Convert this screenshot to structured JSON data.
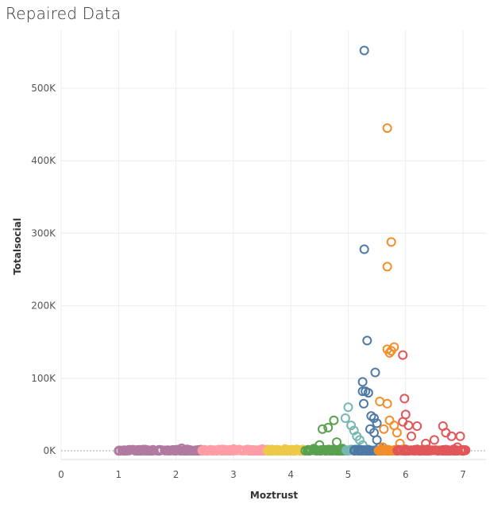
{
  "chart_data": {
    "type": "scatter",
    "title": "Repaired Data",
    "xlabel": "Moztrust",
    "ylabel": "Totalsocial",
    "xlim": [
      0,
      7.4
    ],
    "ylim": [
      -12000,
      580000
    ],
    "x_ticks": [
      {
        "value": 0,
        "label": "0"
      },
      {
        "value": 1,
        "label": "1"
      },
      {
        "value": 2,
        "label": "2"
      },
      {
        "value": 3,
        "label": "3"
      },
      {
        "value": 4,
        "label": "4"
      },
      {
        "value": 5,
        "label": "5"
      },
      {
        "value": 6,
        "label": "6"
      },
      {
        "value": 7,
        "label": "7"
      }
    ],
    "y_ticks": [
      {
        "value": 0,
        "label": "0K"
      },
      {
        "value": 100000,
        "label": "100K"
      },
      {
        "value": 200000,
        "label": "200K"
      },
      {
        "value": 300000,
        "label": "300K"
      },
      {
        "value": 400000,
        "label": "400K"
      },
      {
        "value": 500000,
        "label": "500K"
      }
    ],
    "grid": true,
    "marker": "open-circle",
    "colors": {
      "purple": "#b07aa1",
      "pink": "#ff9da7",
      "yellow": "#edc948",
      "green": "#59a14f",
      "teal": "#76b7b2",
      "blue": "#4e79a7",
      "orange": "#f28e2b",
      "red": "#e15759"
    },
    "series": [
      {
        "color_key": "purple",
        "x_range": [
          1.0,
          2.45
        ],
        "points": [
          [
            1.0,
            0
          ],
          [
            1.1,
            800
          ],
          [
            1.2,
            1500
          ],
          [
            1.35,
            500
          ],
          [
            1.5,
            1200
          ],
          [
            1.6,
            300
          ],
          [
            1.75,
            1000
          ],
          [
            1.9,
            500
          ],
          [
            2.05,
            1800
          ],
          [
            2.1,
            3500
          ],
          [
            2.2,
            800
          ],
          [
            2.35,
            400
          ],
          [
            2.4,
            1200
          ]
        ]
      },
      {
        "color_key": "pink",
        "x_range": [
          2.45,
          3.6
        ],
        "points": [
          [
            2.5,
            1500
          ],
          [
            2.6,
            400
          ],
          [
            2.75,
            1000
          ],
          [
            2.9,
            500
          ],
          [
            3.05,
            1300
          ],
          [
            3.2,
            300
          ],
          [
            3.35,
            900
          ],
          [
            3.5,
            500
          ],
          [
            3.55,
            1100
          ]
        ]
      },
      {
        "color_key": "yellow",
        "x_range": [
          3.6,
          4.25
        ],
        "points": [
          [
            3.65,
            600
          ],
          [
            3.75,
            1500
          ],
          [
            3.9,
            2500
          ],
          [
            4.0,
            800
          ],
          [
            4.1,
            1800
          ],
          [
            4.2,
            500
          ]
        ]
      },
      {
        "color_key": "green",
        "x_range": [
          4.25,
          4.95
        ],
        "points": [
          [
            4.3,
            1500
          ],
          [
            4.4,
            3000
          ],
          [
            4.5,
            8000
          ],
          [
            4.55,
            30000
          ],
          [
            4.65,
            32000
          ],
          [
            4.75,
            42000
          ],
          [
            4.8,
            12000
          ],
          [
            4.9,
            3000
          ]
        ]
      },
      {
        "color_key": "teal",
        "x_range": [
          4.95,
          5.3
        ],
        "points": [
          [
            4.95,
            45000
          ],
          [
            5.0,
            60000
          ],
          [
            5.05,
            35000
          ],
          [
            5.1,
            28000
          ],
          [
            5.15,
            20000
          ],
          [
            5.2,
            15000
          ],
          [
            5.25,
            8000
          ]
        ]
      },
      {
        "color_key": "blue",
        "x_range": [
          5.1,
          5.55
        ],
        "points": [
          [
            5.28,
            552000
          ],
          [
            5.28,
            278000
          ],
          [
            5.33,
            152000
          ],
          [
            5.47,
            108000
          ],
          [
            5.25,
            95000
          ],
          [
            5.3,
            82000
          ],
          [
            5.25,
            82000
          ],
          [
            5.35,
            80000
          ],
          [
            5.27,
            65000
          ],
          [
            5.4,
            48000
          ],
          [
            5.45,
            45000
          ],
          [
            5.5,
            38000
          ],
          [
            5.38,
            30000
          ],
          [
            5.45,
            25000
          ],
          [
            5.5,
            15000
          ],
          [
            5.55,
            5000
          ]
        ]
      },
      {
        "color_key": "orange",
        "x_range": [
          5.5,
          5.95
        ],
        "points": [
          [
            5.68,
            445000
          ],
          [
            5.75,
            288000
          ],
          [
            5.68,
            254000
          ],
          [
            5.68,
            140000
          ],
          [
            5.75,
            138000
          ],
          [
            5.8,
            143000
          ],
          [
            5.72,
            135000
          ],
          [
            5.55,
            68000
          ],
          [
            5.68,
            65000
          ],
          [
            5.62,
            30000
          ],
          [
            5.72,
            42000
          ],
          [
            5.8,
            35000
          ],
          [
            5.85,
            25000
          ],
          [
            5.9,
            10000
          ],
          [
            5.6,
            5000
          ]
        ]
      },
      {
        "color_key": "red",
        "x_range": [
          5.85,
          7.05
        ],
        "points": [
          [
            5.95,
            132000
          ],
          [
            5.98,
            72000
          ],
          [
            5.95,
            40000
          ],
          [
            6.0,
            50000
          ],
          [
            6.05,
            35000
          ],
          [
            6.1,
            20000
          ],
          [
            6.2,
            34000
          ],
          [
            6.35,
            10000
          ],
          [
            6.5,
            15000
          ],
          [
            6.65,
            34000
          ],
          [
            6.7,
            25000
          ],
          [
            6.8,
            20000
          ],
          [
            6.95,
            20000
          ],
          [
            7.0,
            0
          ],
          [
            6.9,
            5000
          ]
        ]
      }
    ]
  }
}
